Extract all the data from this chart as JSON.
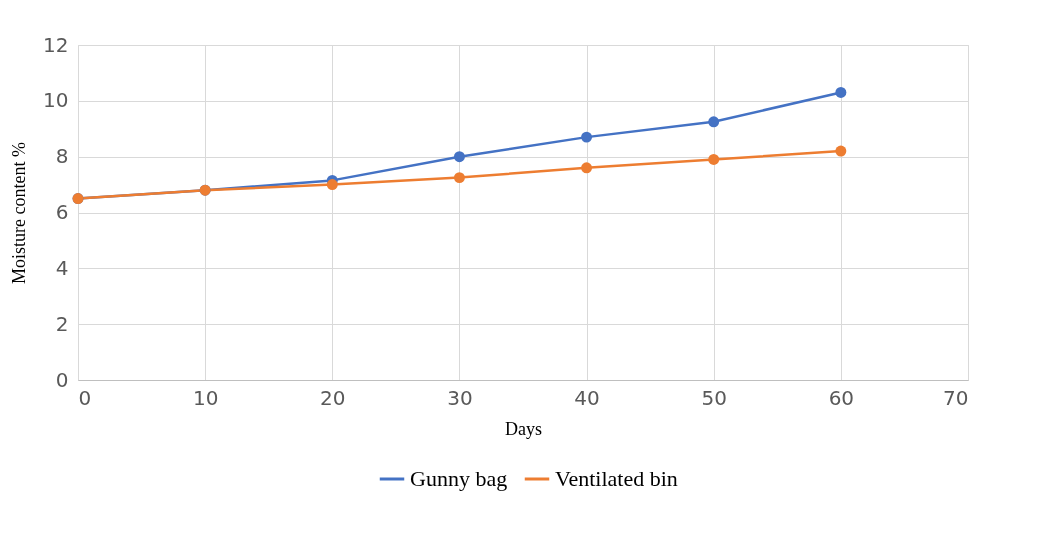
{
  "chart_data": {
    "type": "line",
    "xlabel": "Days",
    "ylabel": "Moisture content %",
    "x": [
      0,
      10,
      20,
      30,
      40,
      50,
      60
    ],
    "series": [
      {
        "name": "Gunny bag",
        "color": "#4472c4",
        "values": [
          6.5,
          6.8,
          7.15,
          8.0,
          8.7,
          9.25,
          10.3
        ]
      },
      {
        "name": "Ventilated bin",
        "color": "#ed7d31",
        "values": [
          6.5,
          6.8,
          7.0,
          7.25,
          7.6,
          7.9,
          8.2
        ]
      }
    ],
    "xlim": [
      0,
      70
    ],
    "xticks": [
      0,
      10,
      20,
      30,
      40,
      50,
      60,
      70
    ],
    "ylim": [
      0,
      12
    ],
    "yticks": [
      0,
      2,
      4,
      6,
      8,
      10,
      12
    ],
    "grid": true,
    "legend": "bottom",
    "marker": "circle",
    "line_style": "solid"
  }
}
